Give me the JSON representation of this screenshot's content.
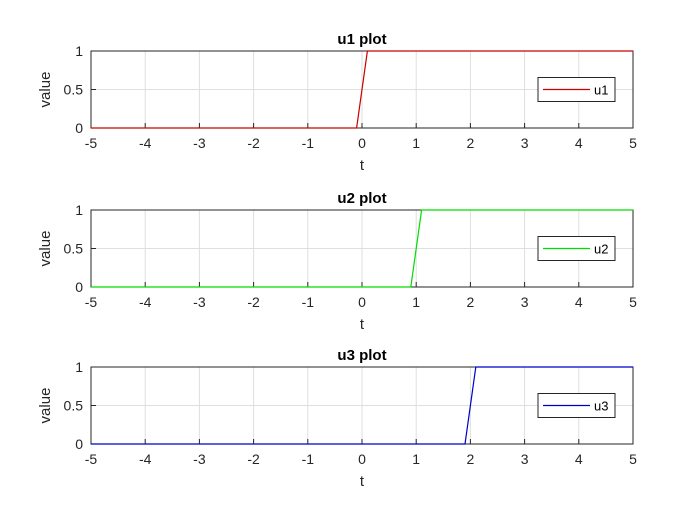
{
  "chart_data": [
    {
      "type": "line",
      "title": "u1 plot",
      "xlabel": "t",
      "ylabel": "value",
      "xlim": [
        -5,
        5
      ],
      "ylim": [
        0,
        1
      ],
      "xticks": [
        "-5",
        "-4",
        "-3",
        "-2",
        "-1",
        "0",
        "1",
        "2",
        "3",
        "4",
        "5"
      ],
      "yticks": [
        "0",
        "0.5",
        "1"
      ],
      "grid": true,
      "legend_position": "right",
      "series": [
        {
          "name": "u1",
          "color": "#cc0000",
          "x": [
            -5,
            -0.1,
            0.1,
            5
          ],
          "y": [
            0,
            0,
            1,
            1
          ]
        }
      ]
    },
    {
      "type": "line",
      "title": "u2 plot",
      "xlabel": "t",
      "ylabel": "value",
      "xlim": [
        -5,
        5
      ],
      "ylim": [
        0,
        1
      ],
      "xticks": [
        "-5",
        "-4",
        "-3",
        "-2",
        "-1",
        "0",
        "1",
        "2",
        "3",
        "4",
        "5"
      ],
      "yticks": [
        "0",
        "0.5",
        "1"
      ],
      "grid": true,
      "legend_position": "right",
      "series": [
        {
          "name": "u2",
          "color": "#00dd00",
          "x": [
            -5,
            0.9,
            1.1,
            5
          ],
          "y": [
            0,
            0,
            1,
            1
          ]
        }
      ]
    },
    {
      "type": "line",
      "title": "u3 plot",
      "xlabel": "t",
      "ylabel": "value",
      "xlim": [
        -5,
        5
      ],
      "ylim": [
        0,
        1
      ],
      "xticks": [
        "-5",
        "-4",
        "-3",
        "-2",
        "-1",
        "0",
        "1",
        "2",
        "3",
        "4",
        "5"
      ],
      "yticks": [
        "0",
        "0.5",
        "1"
      ],
      "grid": true,
      "legend_position": "right",
      "series": [
        {
          "name": "u3",
          "color": "#0000cc",
          "x": [
            -5,
            1.9,
            2.1,
            5
          ],
          "y": [
            0,
            0,
            1,
            1
          ]
        }
      ]
    }
  ]
}
